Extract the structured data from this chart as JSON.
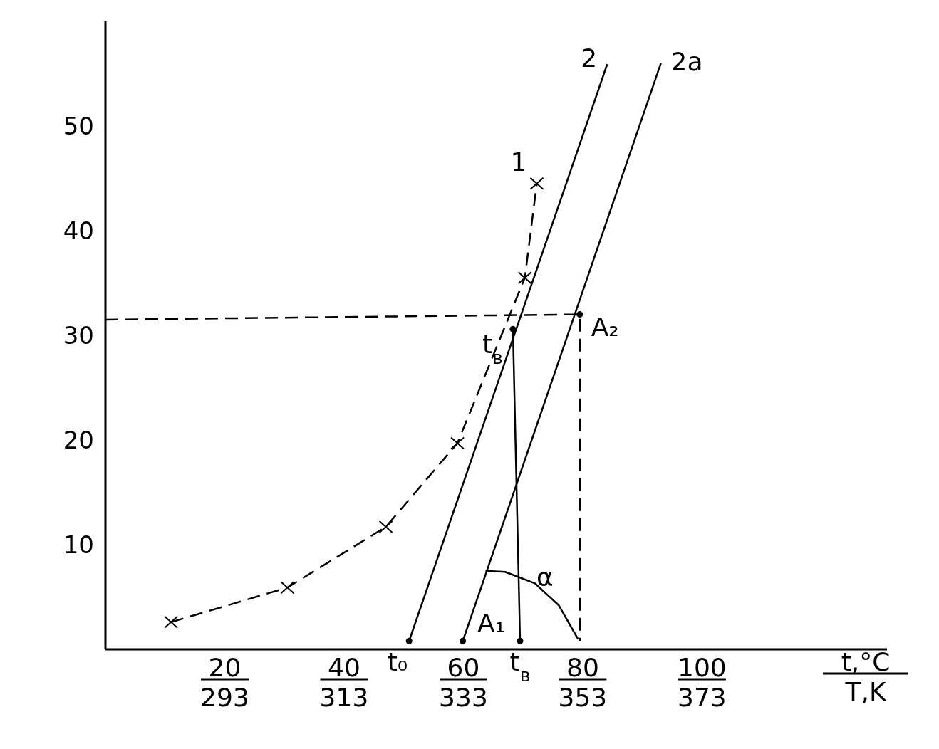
{
  "chart_data": {
    "type": "line",
    "xlabel": "t,°C",
    "x2label": "T,K",
    "xlim": [
      0,
      131
    ],
    "x2lim": [
      273,
      404
    ],
    "ylim": [
      0,
      60
    ],
    "xticks": [
      20,
      40,
      60,
      80,
      100
    ],
    "x2ticks": [
      293,
      313,
      333,
      353,
      373
    ],
    "yticks": [
      10,
      20,
      30,
      40,
      50
    ],
    "grid": false,
    "series": [
      {
        "name": "1",
        "color": "#000000",
        "marker": "cross",
        "line_style": "dashed",
        "x": [
          11,
          30.5,
          47,
          59,
          70.3,
          72.3
        ],
        "values": [
          2.6,
          5.9,
          11.7,
          19.7,
          35.5,
          44.5
        ]
      },
      {
        "name": "2",
        "type": "line",
        "color": "#000000",
        "marker": "none",
        "line_style": "solid",
        "x": [
          50.9,
          84.1
        ],
        "values": [
          0.8,
          55.9
        ]
      },
      {
        "name": "2a",
        "type": "line",
        "color": "#000000",
        "marker": "none",
        "line_style": "solid",
        "x": [
          59.9,
          93.1
        ],
        "values": [
          0.8,
          56
        ]
      },
      {
        "type": "line",
        "color": "#000000",
        "marker": "none",
        "line_style": "dashed",
        "x": [
          0,
          79.5,
          79.5
        ],
        "values": [
          31.5,
          32,
          0.8
        ]
      },
      {
        "type": "line",
        "color": "#000000",
        "marker": "none",
        "line_style": "solid",
        "x": [
          68.3,
          69.5
        ],
        "values": [
          30.6,
          0.8
        ]
      },
      {
        "type": "line",
        "color": "#000000",
        "marker": "none",
        "line_style": "solid",
        "x": [
          63.7,
          67,
          72,
          76,
          79.2
        ],
        "values": [
          7.5,
          7.4,
          6.3,
          4.2,
          1
        ]
      },
      {
        "type": "scatter",
        "color": "#000000",
        "marker": "circle",
        "x": [
          50.9,
          59.9,
          69.5,
          79.5,
          68.3
        ],
        "values": [
          0.8,
          0.8,
          0.8,
          32,
          30.6
        ]
      }
    ],
    "annotations": [
      {
        "text": "t$_{в}$",
        "x": 68.3,
        "y": 30.6
      },
      {
        "text": "A₂",
        "x": 79.5,
        "y": 32
      },
      {
        "text": "t₀",
        "x": 50.9,
        "y": 0.8
      },
      {
        "text": "t$_{в}$",
        "x": 69.5,
        "y": 0.8
      },
      "A₁",
      "α"
    ]
  }
}
